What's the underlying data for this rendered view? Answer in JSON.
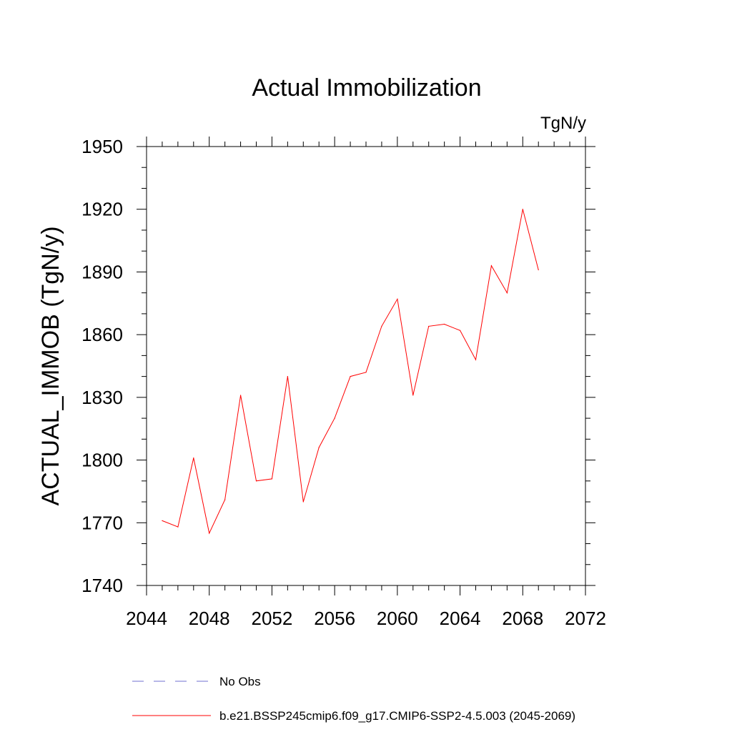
{
  "chart_data": {
    "type": "line",
    "title": "Actual Immobilization",
    "units_label": "TgN/y",
    "xlabel": "",
    "ylabel": "ACTUAL_IMMOB  (TgN/y)",
    "xlim": [
      2044,
      2072
    ],
    "ylim": [
      1740,
      1950
    ],
    "x_ticks": [
      2044,
      2048,
      2052,
      2056,
      2060,
      2064,
      2068,
      2072
    ],
    "y_ticks": [
      1740,
      1770,
      1800,
      1830,
      1860,
      1890,
      1920,
      1950
    ],
    "grid": false,
    "legend_position": "bottom",
    "series": [
      {
        "name": "b.e21.BSSP245cmip6.f09_g17.CMIP6-SSP2-4.5.003 (2045-2069)",
        "color": "#ff0000",
        "style": "solid",
        "x": [
          2045,
          2046,
          2047,
          2048,
          2049,
          2050,
          2051,
          2052,
          2053,
          2054,
          2055,
          2056,
          2057,
          2058,
          2059,
          2060,
          2061,
          2062,
          2063,
          2064,
          2065,
          2066,
          2067,
          2068,
          2069
        ],
        "y": [
          1771,
          1768,
          1801,
          1765,
          1781,
          1831,
          1790,
          1791,
          1840,
          1780,
          1806,
          1820,
          1840,
          1842,
          1864,
          1877,
          1831,
          1864,
          1865,
          1862,
          1848,
          1893,
          1880,
          1920,
          1891
        ]
      }
    ],
    "legend": [
      {
        "label": "No Obs",
        "color": "#6f6fd0",
        "style": "dashed"
      },
      {
        "label": "b.e21.BSSP245cmip6.f09_g17.CMIP6-SSP2-4.5.003 (2045-2069)",
        "color": "#ff0000",
        "style": "solid"
      }
    ]
  }
}
